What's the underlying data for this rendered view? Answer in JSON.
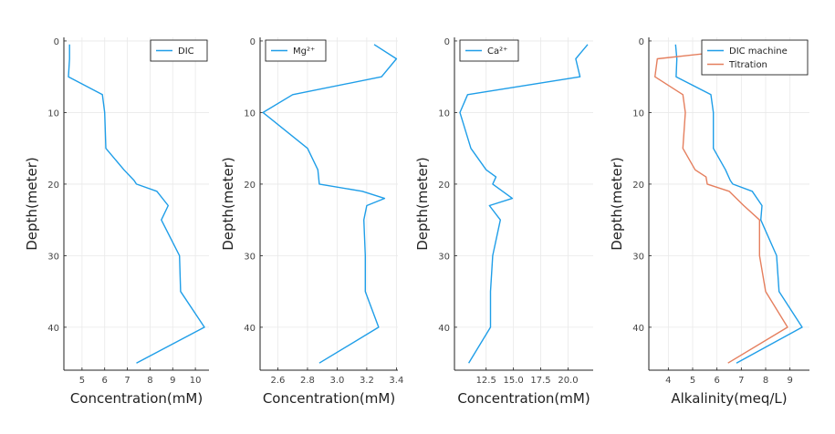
{
  "chart_data": [
    {
      "type": "line",
      "xlabel": "Concentration(mM)",
      "ylabel": "Depth(meter)",
      "xlim": [
        4.2,
        10.6
      ],
      "ylim": [
        46,
        -0.5
      ],
      "xticks": [
        5,
        6,
        7,
        8,
        9,
        10
      ],
      "xtick_labels": [
        "5",
        "6",
        "7",
        "8",
        "9",
        "10"
      ],
      "yticks": [
        0,
        10,
        20,
        30,
        40
      ],
      "ytick_labels": [
        "0",
        "10",
        "20",
        "30",
        "40"
      ],
      "grid": true,
      "legend": "top-right",
      "series": [
        {
          "name": "DIC",
          "color": "#1f9ee8",
          "x": [
            4.45,
            4.45,
            4.4,
            5.9,
            6.0,
            6.05,
            6.85,
            7.3,
            7.4,
            8.3,
            8.8,
            8.5,
            9.3,
            9.35,
            10.4,
            7.4
          ],
          "y": [
            0.5,
            2.5,
            5,
            7.5,
            10,
            15,
            18,
            19.5,
            20,
            21,
            23,
            25,
            30,
            35,
            40,
            45
          ]
        }
      ]
    },
    {
      "type": "line",
      "xlabel": "Concentration(mM)",
      "ylabel": "Depth(meter)",
      "xlim": [
        2.48,
        3.41
      ],
      "ylim": [
        46,
        -0.5
      ],
      "xticks": [
        2.6,
        2.8,
        3.0,
        3.2,
        3.4
      ],
      "xtick_labels": [
        "2.6",
        "2.8",
        "3.0",
        "3.2",
        "3.4"
      ],
      "yticks": [
        0,
        10,
        20,
        30,
        40
      ],
      "ytick_labels": [
        "0",
        "10",
        "20",
        "30",
        "40"
      ],
      "grid": true,
      "legend": "top-left",
      "series": [
        {
          "name": "Mg²⁺",
          "color": "#1f9ee8",
          "x": [
            3.25,
            3.4,
            3.3,
            2.7,
            2.5,
            2.8,
            2.87,
            2.88,
            3.17,
            3.32,
            3.2,
            3.18,
            3.19,
            3.19,
            3.28,
            2.88
          ],
          "y": [
            0.5,
            2.5,
            5,
            7.5,
            10,
            15,
            18,
            20,
            21,
            22,
            23,
            25,
            30,
            35,
            40,
            45
          ]
        }
      ]
    },
    {
      "type": "line",
      "xlabel": "Concentration(mM)",
      "ylabel": "Depth(meter)",
      "xlim": [
        9.6,
        22.3
      ],
      "ylim": [
        46,
        -0.5
      ],
      "xticks": [
        12.5,
        15.0,
        17.5,
        20.0
      ],
      "xtick_labels": [
        "12.5",
        "15.0",
        "17.5",
        "20.0"
      ],
      "yticks": [
        0,
        10,
        20,
        30,
        40
      ],
      "ytick_labels": [
        "0",
        "10",
        "20",
        "30",
        "40"
      ],
      "grid": true,
      "legend": "top-left",
      "series": [
        {
          "name": "Ca²⁺",
          "color": "#1f9ee8",
          "x": [
            21.8,
            20.7,
            21.1,
            10.8,
            10.1,
            11.1,
            12.5,
            13.4,
            13.1,
            14.9,
            12.8,
            13.8,
            13.1,
            12.9,
            12.9,
            10.9
          ],
          "y": [
            0.5,
            2.5,
            5,
            7.5,
            10,
            15,
            18,
            19,
            20,
            22,
            23,
            25,
            30,
            35,
            40,
            45
          ]
        }
      ]
    },
    {
      "type": "line",
      "xlabel": "Alkalinity(meq/L)",
      "ylabel": "Depth(meter)",
      "xlim": [
        3.2,
        9.8
      ],
      "ylim": [
        46,
        -0.5
      ],
      "xticks": [
        4,
        5,
        6,
        7,
        8,
        9
      ],
      "xtick_labels": [
        "4",
        "5",
        "6",
        "7",
        "8",
        "9"
      ],
      "yticks": [
        0,
        10,
        20,
        30,
        40
      ],
      "ytick_labels": [
        "0",
        "10",
        "20",
        "30",
        "40"
      ],
      "grid": true,
      "legend": "top-right",
      "series": [
        {
          "name": "DIC machine",
          "color": "#1f9ee8",
          "x": [
            4.3,
            4.35,
            4.32,
            5.75,
            5.85,
            5.85,
            6.35,
            6.55,
            6.65,
            7.45,
            7.85,
            7.8,
            8.45,
            8.55,
            9.5,
            6.8
          ],
          "y": [
            0.5,
            2.5,
            5,
            7.5,
            10,
            15,
            18,
            19.5,
            20,
            21,
            23,
            25,
            30,
            35,
            40,
            45
          ]
        },
        {
          "name": "Titration",
          "color": "#e57f5e",
          "x": [
            8.9,
            3.55,
            3.45,
            4.6,
            4.7,
            4.6,
            5.1,
            5.55,
            5.6,
            6.5,
            7.1,
            7.75,
            7.75,
            8.0,
            8.9,
            6.45
          ],
          "y": [
            0.5,
            2.5,
            5,
            7.5,
            10,
            15,
            18,
            19,
            20,
            21,
            23,
            25,
            30,
            35,
            40,
            45
          ]
        }
      ]
    }
  ]
}
